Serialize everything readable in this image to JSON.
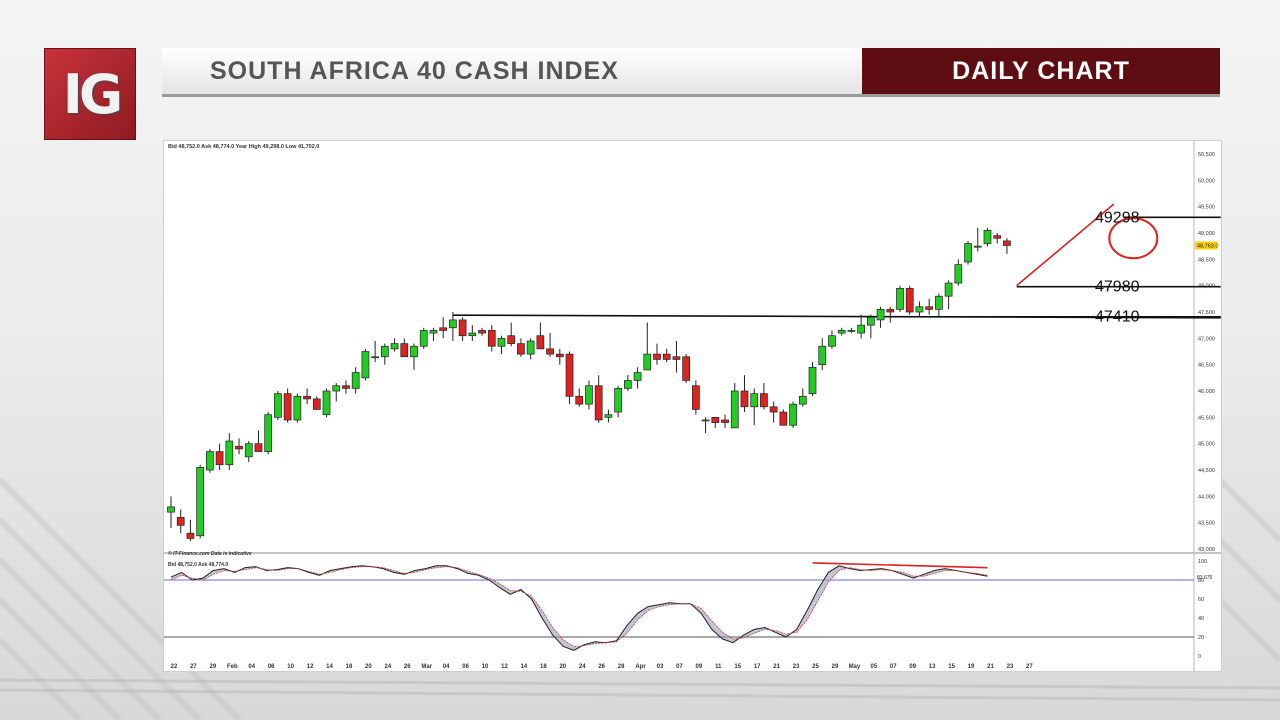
{
  "logo_text": "IG",
  "header": {
    "title": "SOUTH AFRICA 40 CASH INDEX",
    "badge": "DAILY CHART"
  },
  "colors": {
    "up": "#22cc22",
    "down": "#dd2222",
    "accent_red": "#dd2222",
    "brand": "#5e0d12"
  },
  "chart_data": [
    {
      "type": "candlestick",
      "info_header": {
        "bid_label": "Bid",
        "bid": "48,752.0",
        "ask_label": "Ask",
        "ask": "48,774.0",
        "year_high_label": "Year High",
        "year_high": "49,298.0",
        "low_label": "Low",
        "low": "41,702.0"
      },
      "ylim": [
        43000,
        50500
      ],
      "yticks": [
        "43,000",
        "43,500",
        "44,000",
        "44,500",
        "45,000",
        "45,500",
        "46,000",
        "46,500",
        "47,000",
        "47,500",
        "48,000",
        "48,500",
        "49,000",
        "49,500",
        "50,000",
        "50,500"
      ],
      "current_price_label": "48,763.0",
      "current_price": 48763,
      "xticks": [
        {
          "i": 0,
          "label": "22"
        },
        {
          "i": 2,
          "label": "27"
        },
        {
          "i": 4,
          "label": "29"
        },
        {
          "i": 6,
          "label": "Feb"
        },
        {
          "i": 8,
          "label": "04"
        },
        {
          "i": 10,
          "label": "06"
        },
        {
          "i": 12,
          "label": "10"
        },
        {
          "i": 14,
          "label": "12"
        },
        {
          "i": 16,
          "label": "14"
        },
        {
          "i": 18,
          "label": "18"
        },
        {
          "i": 20,
          "label": "20"
        },
        {
          "i": 22,
          "label": "24"
        },
        {
          "i": 24,
          "label": "26"
        },
        {
          "i": 26,
          "label": "Mar"
        },
        {
          "i": 28,
          "label": "04"
        },
        {
          "i": 30,
          "label": "06"
        },
        {
          "i": 32,
          "label": "10"
        },
        {
          "i": 34,
          "label": "12"
        },
        {
          "i": 36,
          "label": "14"
        },
        {
          "i": 38,
          "label": "18"
        },
        {
          "i": 40,
          "label": "20"
        },
        {
          "i": 42,
          "label": "24"
        },
        {
          "i": 44,
          "label": "26"
        },
        {
          "i": 46,
          "label": "28"
        },
        {
          "i": 48,
          "label": "Apr"
        },
        {
          "i": 50,
          "label": "03"
        },
        {
          "i": 52,
          "label": "07"
        },
        {
          "i": 54,
          "label": "09"
        },
        {
          "i": 56,
          "label": "11"
        },
        {
          "i": 58,
          "label": "15"
        },
        {
          "i": 60,
          "label": "17"
        },
        {
          "i": 62,
          "label": "21"
        },
        {
          "i": 64,
          "label": "23"
        },
        {
          "i": 66,
          "label": "25"
        },
        {
          "i": 68,
          "label": "29"
        },
        {
          "i": 70,
          "label": "May"
        },
        {
          "i": 72,
          "label": "05"
        },
        {
          "i": 74,
          "label": "07"
        },
        {
          "i": 76,
          "label": "09"
        },
        {
          "i": 78,
          "label": "13"
        },
        {
          "i": 80,
          "label": "15"
        },
        {
          "i": 82,
          "label": "19"
        },
        {
          "i": 84,
          "label": "21"
        },
        {
          "i": 86,
          "label": "23"
        },
        {
          "i": 88,
          "label": "27"
        }
      ],
      "x_count": 103,
      "candles": [
        [
          43700,
          44000,
          43400,
          43800
        ],
        [
          43600,
          43750,
          43300,
          43450
        ],
        [
          43300,
          43550,
          43150,
          43200
        ],
        [
          43250,
          44600,
          43200,
          44550
        ],
        [
          44500,
          44900,
          44450,
          44850
        ],
        [
          44850,
          45000,
          44500,
          44600
        ],
        [
          44600,
          45200,
          44500,
          45050
        ],
        [
          44950,
          45100,
          44800,
          44900
        ],
        [
          44750,
          45050,
          44650,
          45000
        ],
        [
          45000,
          45250,
          44850,
          44850
        ],
        [
          44850,
          45600,
          44800,
          45550
        ],
        [
          45500,
          46000,
          45450,
          45950
        ],
        [
          45950,
          46050,
          45400,
          45450
        ],
        [
          45450,
          45950,
          45400,
          45900
        ],
        [
          45900,
          46050,
          45750,
          45850
        ],
        [
          45850,
          45900,
          45650,
          45650
        ],
        [
          45550,
          46050,
          45500,
          46000
        ],
        [
          46000,
          46150,
          45800,
          46100
        ],
        [
          46100,
          46200,
          45950,
          46050
        ],
        [
          46050,
          46450,
          45950,
          46350
        ],
        [
          46250,
          46800,
          46200,
          46750
        ],
        [
          46650,
          46950,
          46550,
          46650
        ],
        [
          46650,
          46900,
          46500,
          46850
        ],
        [
          46800,
          47000,
          46750,
          46900
        ],
        [
          46900,
          47000,
          46650,
          46650
        ],
        [
          46650,
          46900,
          46400,
          46850
        ],
        [
          46850,
          47200,
          46800,
          47150
        ],
        [
          47100,
          47200,
          46950,
          47150
        ],
        [
          47200,
          47400,
          47000,
          47150
        ],
        [
          47200,
          47500,
          46950,
          47350
        ],
        [
          47350,
          47400,
          46950,
          47050
        ],
        [
          47050,
          47250,
          46950,
          47100
        ],
        [
          47150,
          47200,
          47050,
          47100
        ],
        [
          47150,
          47250,
          46750,
          46850
        ],
        [
          46850,
          47050,
          46700,
          47000
        ],
        [
          47050,
          47300,
          46850,
          46900
        ],
        [
          46900,
          47000,
          46650,
          46700
        ],
        [
          46700,
          47000,
          46600,
          46950
        ],
        [
          47050,
          47300,
          46800,
          46800
        ],
        [
          46800,
          47100,
          46650,
          46700
        ],
        [
          46700,
          46800,
          46500,
          46650
        ],
        [
          46700,
          46750,
          45750,
          45900
        ],
        [
          45900,
          46050,
          45700,
          45750
        ],
        [
          45750,
          46200,
          45650,
          46100
        ],
        [
          46100,
          46300,
          45400,
          45450
        ],
        [
          45500,
          45650,
          45400,
          45550
        ],
        [
          45600,
          46100,
          45500,
          46050
        ],
        [
          46050,
          46300,
          46000,
          46200
        ],
        [
          46200,
          46450,
          46050,
          46350
        ],
        [
          46400,
          47300,
          46450,
          46700
        ],
        [
          46700,
          46900,
          46500,
          46600
        ],
        [
          46700,
          46800,
          46550,
          46600
        ],
        [
          46650,
          46950,
          46350,
          46600
        ],
        [
          46650,
          46700,
          46150,
          46200
        ],
        [
          46100,
          46200,
          45550,
          45650
        ],
        [
          45450,
          45500,
          45200,
          45450
        ],
        [
          45500,
          45500,
          45300,
          45400
        ],
        [
          45450,
          45550,
          45300,
          45400
        ],
        [
          45300,
          46150,
          45300,
          46000
        ],
        [
          46000,
          46300,
          45600,
          45700
        ],
        [
          45700,
          46050,
          45350,
          45950
        ],
        [
          45950,
          46150,
          45650,
          45700
        ],
        [
          45700,
          45800,
          45400,
          45600
        ],
        [
          45600,
          45650,
          45350,
          45350
        ],
        [
          45350,
          45800,
          45300,
          45750
        ],
        [
          45750,
          46050,
          45700,
          45900
        ],
        [
          45950,
          46550,
          45900,
          46450
        ],
        [
          46500,
          47000,
          46400,
          46850
        ],
        [
          46850,
          47150,
          46800,
          47050
        ],
        [
          47100,
          47200,
          47050,
          47150
        ],
        [
          47150,
          47200,
          47100,
          47150
        ],
        [
          47100,
          47450,
          47000,
          47250
        ],
        [
          47250,
          47450,
          47000,
          47400
        ],
        [
          47350,
          47600,
          47200,
          47550
        ],
        [
          47550,
          47600,
          47300,
          47500
        ],
        [
          47550,
          48000,
          47500,
          47950
        ],
        [
          47950,
          48000,
          47450,
          47500
        ],
        [
          47500,
          47700,
          47400,
          47600
        ],
        [
          47600,
          47750,
          47450,
          47550
        ],
        [
          47550,
          47850,
          47400,
          47800
        ],
        [
          47800,
          48100,
          47550,
          48050
        ],
        [
          48050,
          48500,
          48000,
          48400
        ],
        [
          48450,
          48850,
          48400,
          48800
        ],
        [
          48750,
          49100,
          48650,
          48750
        ],
        [
          48800,
          49100,
          48750,
          49050
        ],
        [
          48950,
          49000,
          48800,
          48900
        ],
        [
          48850,
          48900,
          48600,
          48763
        ]
      ],
      "levels": [
        {
          "label": "49298",
          "value": 49298,
          "from_i": 98,
          "to_i": 108
        },
        {
          "label": "47980",
          "value": 47980,
          "from_i": 87,
          "to_i": 108
        },
        {
          "label": "47410",
          "value": 47410,
          "from_i": 72,
          "to_i": 108
        }
      ],
      "resistance_line": {
        "from_i": 29,
        "to_i": 108,
        "from_v": 47440,
        "to_v": 47390
      },
      "trend_line": {
        "from_i": 87,
        "to_i": 97,
        "from_v": 48000,
        "to_v": 49550
      },
      "highlight_circle": {
        "i": 99,
        "v": 48900
      },
      "copyright": "© IT-Finance.com  Data is indicative"
    },
    {
      "type": "line",
      "info_header": {
        "bid_label": "Bid",
        "bid": "48,752.0",
        "ask_label": "Ask",
        "ask": "48,774.0"
      },
      "ylim": [
        0,
        100
      ],
      "yticks": [
        "0",
        "20",
        "40",
        "60",
        "80",
        "100"
      ],
      "value_label": "83.675",
      "reference_lines": [
        80,
        20
      ],
      "series": [
        {
          "values": [
            83,
            88,
            80,
            82,
            90,
            92,
            88,
            93,
            94,
            90,
            91,
            93,
            92,
            88,
            85,
            90,
            92,
            94,
            95,
            94,
            92,
            88,
            86,
            90,
            92,
            95,
            95,
            92,
            87,
            85,
            80,
            72,
            65,
            70,
            60,
            40,
            22,
            10,
            6,
            12,
            15,
            14,
            16,
            32,
            45,
            52,
            54,
            56,
            55,
            55,
            45,
            28,
            18,
            14,
            22,
            28,
            30,
            25,
            20,
            28,
            48,
            70,
            88,
            95,
            92,
            90,
            91,
            92,
            90,
            86,
            82,
            86,
            90,
            92,
            90,
            88,
            86,
            84
          ]
        },
        {
          "values": [
            80,
            85,
            82,
            80,
            86,
            90,
            89,
            91,
            93,
            91,
            90,
            92,
            92,
            89,
            86,
            88,
            91,
            93,
            94,
            94,
            93,
            90,
            87,
            88,
            91,
            93,
            94,
            93,
            89,
            86,
            82,
            76,
            69,
            68,
            63,
            48,
            30,
            17,
            10,
            11,
            13,
            14,
            15,
            24,
            38,
            48,
            52,
            54,
            55,
            55,
            50,
            37,
            25,
            18,
            19,
            24,
            28,
            27,
            23,
            25,
            38,
            58,
            78,
            90,
            93,
            91,
            90,
            91,
            90,
            88,
            84,
            84,
            87,
            90,
            90,
            88,
            87,
            85
          ]
        }
      ],
      "divergence_line": {
        "from_i": 66,
        "to_i": 84,
        "from_v": 98,
        "to_v": 93
      }
    }
  ]
}
